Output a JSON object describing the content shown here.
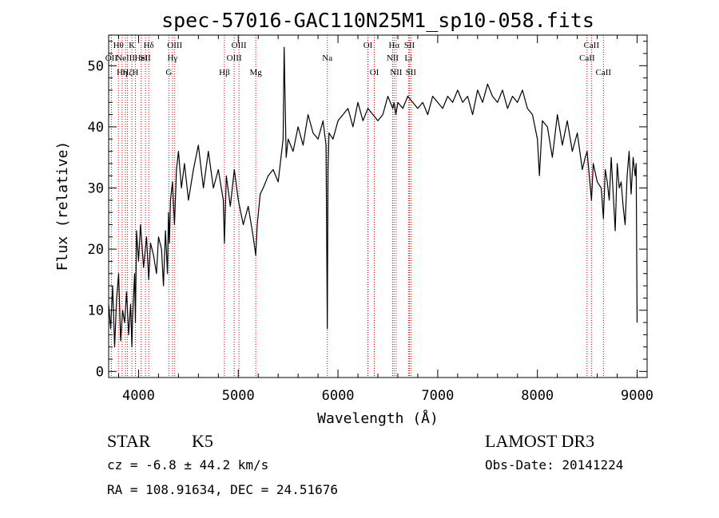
{
  "chart_data": {
    "type": "line",
    "title": "spec-57016-GAC110N25M1_sp10-058.fits",
    "xlabel": "Wavelength (Å)",
    "ylabel": "Flux (relative)",
    "xlim": [
      3700,
      9100
    ],
    "ylim": [
      -1,
      55
    ],
    "xticks": [
      4000,
      5000,
      6000,
      7000,
      8000,
      9000
    ],
    "yticks": [
      0,
      10,
      20,
      30,
      40,
      50
    ],
    "line_color": "#000000",
    "marker_color": "#cc0000",
    "spectrum": {
      "x": [
        3700,
        3720,
        3740,
        3760,
        3780,
        3800,
        3820,
        3840,
        3860,
        3880,
        3900,
        3920,
        3933,
        3940,
        3960,
        3968,
        3980,
        4000,
        4020,
        4050,
        4080,
        4102,
        4120,
        4150,
        4180,
        4200,
        4230,
        4250,
        4270,
        4290,
        4300,
        4310,
        4320,
        4340,
        4360,
        4380,
        4400,
        4430,
        4460,
        4500,
        4550,
        4600,
        4650,
        4700,
        4750,
        4800,
        4850,
        4861,
        4880,
        4920,
        4960,
        5000,
        5050,
        5100,
        5150,
        5175,
        5190,
        5220,
        5250,
        5300,
        5350,
        5400,
        5450,
        5460,
        5480,
        5500,
        5550,
        5600,
        5650,
        5700,
        5750,
        5800,
        5850,
        5880,
        5893,
        5900,
        5910,
        5950,
        6000,
        6050,
        6100,
        6150,
        6200,
        6250,
        6300,
        6350,
        6400,
        6450,
        6500,
        6550,
        6563,
        6580,
        6600,
        6650,
        6700,
        6750,
        6800,
        6850,
        6900,
        6950,
        7000,
        7050,
        7100,
        7150,
        7200,
        7250,
        7300,
        7350,
        7400,
        7450,
        7500,
        7550,
        7600,
        7650,
        7700,
        7750,
        7800,
        7850,
        7900,
        7950,
        8000,
        8020,
        8050,
        8100,
        8150,
        8200,
        8250,
        8300,
        8350,
        8400,
        8450,
        8480,
        8498,
        8520,
        8542,
        8560,
        8600,
        8640,
        8662,
        8680,
        8700,
        8720,
        8740,
        8760,
        8780,
        8800,
        8820,
        8840,
        8860,
        8880,
        8900,
        8920,
        8940,
        8960,
        8980,
        8990,
        9000
      ],
      "y": [
        11,
        7,
        14,
        4,
        12,
        16,
        5,
        10,
        8,
        13,
        6,
        11,
        4,
        9,
        16,
        8,
        23,
        18,
        24,
        17,
        22,
        15,
        21,
        19,
        16,
        22,
        20,
        14,
        23,
        16,
        26,
        21,
        28,
        31,
        24,
        33,
        36,
        30,
        34,
        28,
        33,
        37,
        30,
        36,
        30,
        33,
        28,
        21,
        32,
        27,
        33,
        28,
        24,
        27,
        22,
        19,
        24,
        29,
        30,
        32,
        33,
        31,
        38,
        53,
        35,
        38,
        36,
        40,
        37,
        42,
        39,
        38,
        41,
        37,
        7,
        33,
        39,
        38,
        41,
        42,
        43,
        40,
        44,
        41,
        43,
        42,
        41,
        42,
        45,
        43,
        44,
        42,
        44,
        43,
        45,
        44,
        43,
        44,
        42,
        45,
        44,
        43,
        45,
        44,
        46,
        44,
        45,
        42,
        46,
        44,
        47,
        45,
        44,
        46,
        43,
        45,
        44,
        46,
        43,
        42,
        38,
        32,
        41,
        40,
        35,
        42,
        37,
        41,
        36,
        39,
        33,
        35,
        36,
        32,
        28,
        34,
        31,
        30,
        25,
        33,
        31,
        28,
        35,
        29,
        23,
        34,
        30,
        31,
        27,
        24,
        32,
        36,
        29,
        35,
        32,
        34,
        8
      ]
    },
    "lines": [
      {
        "wave": 3727,
        "label": "OII",
        "row": 1
      },
      {
        "wave": 3798,
        "label": "Hθ",
        "row": 0
      },
      {
        "wave": 3835,
        "label": "Hη",
        "row": 2
      },
      {
        "wave": 3869,
        "label": "NeIII",
        "row": 1
      },
      {
        "wave": 3889,
        "label": "Hζ",
        "row": 2
      },
      {
        "wave": 3933,
        "label": "K",
        "row": 0
      },
      {
        "wave": 3968,
        "label": "H",
        "row": 2
      },
      {
        "wave": 4026,
        "label": "HeI",
        "row": 1
      },
      {
        "wave": 4069,
        "label": "SII",
        "row": 1
      },
      {
        "wave": 4102,
        "label": "Hδ",
        "row": 0
      },
      {
        "wave": 4304,
        "label": "G",
        "row": 2
      },
      {
        "wave": 4340,
        "label": "Hγ",
        "row": 1
      },
      {
        "wave": 4363,
        "label": "OIII",
        "row": 0
      },
      {
        "wave": 4861,
        "label": "Hβ",
        "row": 2
      },
      {
        "wave": 4959,
        "label": "OIII",
        "row": 1
      },
      {
        "wave": 5007,
        "label": "OIII",
        "row": 0
      },
      {
        "wave": 5175,
        "label": "Mg",
        "row": 2
      },
      {
        "wave": 5893,
        "label": "Na",
        "row": 1
      },
      {
        "wave": 6300,
        "label": "OI",
        "row": 0
      },
      {
        "wave": 6364,
        "label": "OI",
        "row": 2
      },
      {
        "wave": 6548,
        "label": "NII",
        "row": 1
      },
      {
        "wave": 6563,
        "label": "Hα",
        "row": 0
      },
      {
        "wave": 6583,
        "label": "NII",
        "row": 2
      },
      {
        "wave": 6707,
        "label": "Li",
        "row": 1
      },
      {
        "wave": 6716,
        "label": "SII",
        "row": 0
      },
      {
        "wave": 6731,
        "label": "SII",
        "row": 2
      },
      {
        "wave": 8498,
        "label": "CaII",
        "row": 1
      },
      {
        "wave": 8542,
        "label": "CaII",
        "row": 0
      },
      {
        "wave": 8662,
        "label": "CaII",
        "row": 2
      }
    ]
  },
  "info": {
    "object_type": "STAR",
    "subclass": "K5",
    "survey": "LAMOST DR3",
    "cz": "cz = -6.8 ± 44.2 km/s",
    "obs_date": "Obs-Date: 20141224",
    "coords": "RA = 108.91634, DEC =  24.51676"
  }
}
